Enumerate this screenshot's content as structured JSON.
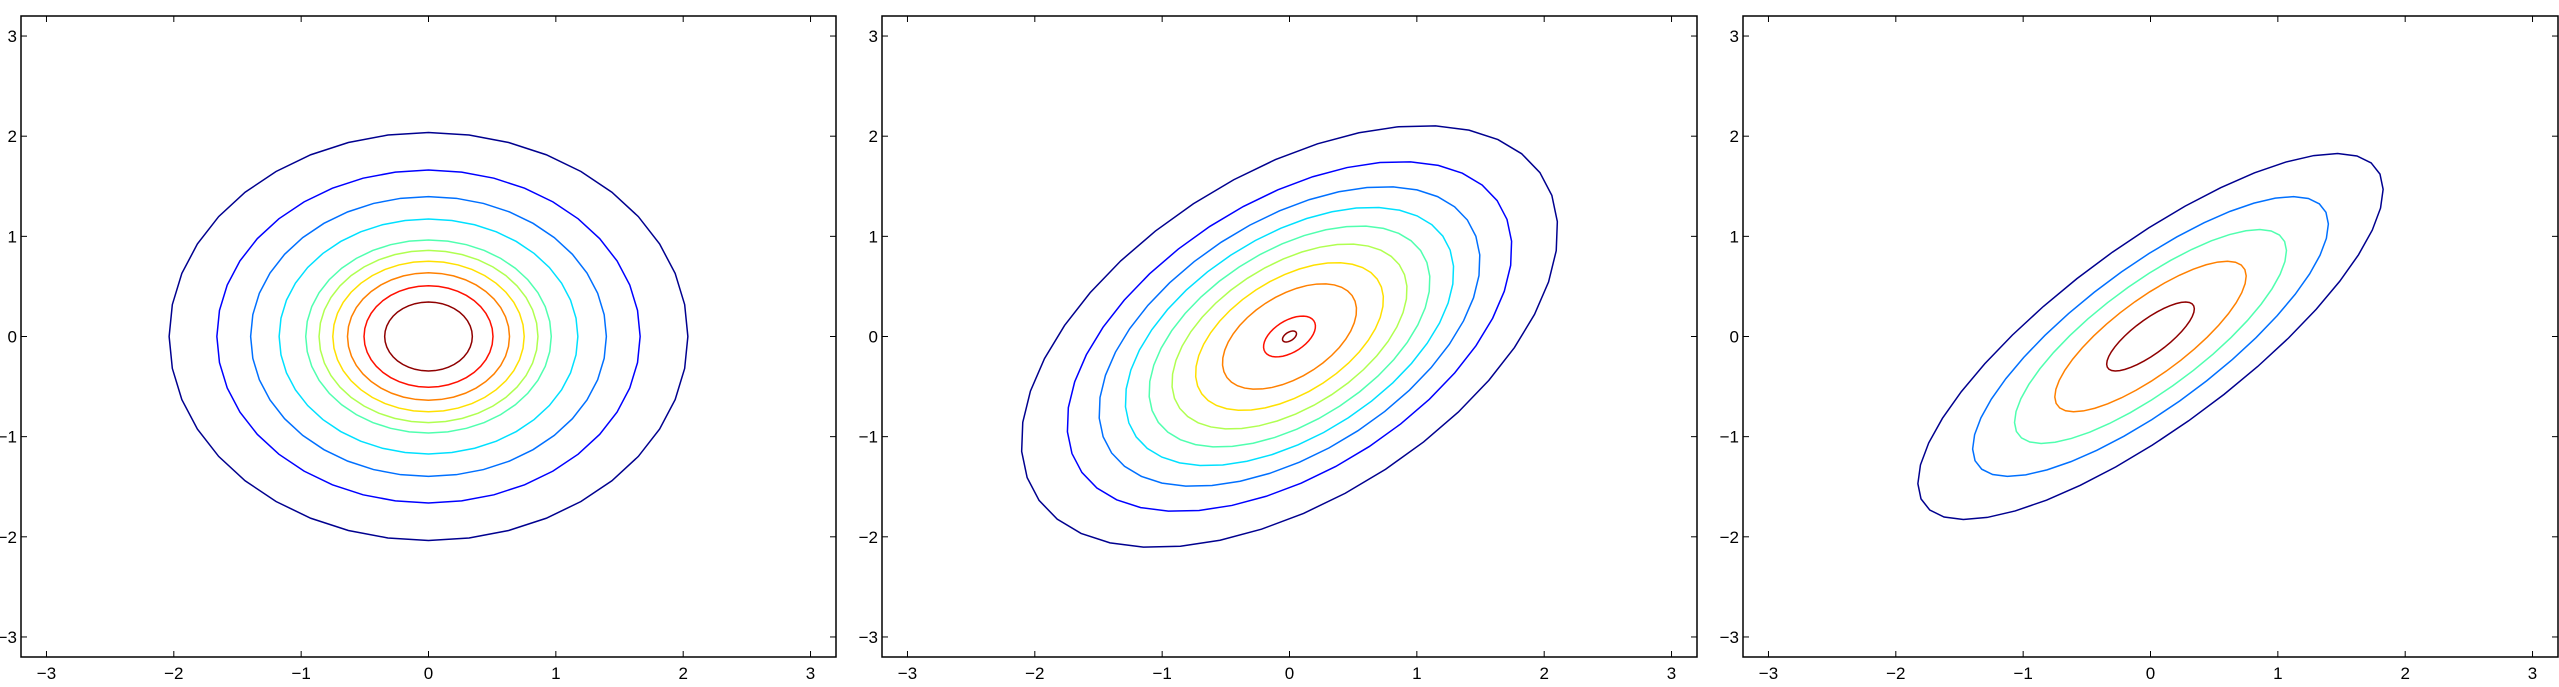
{
  "chart_data": [
    {
      "type": "contour",
      "xlim": [
        -3.2,
        3.2
      ],
      "ylim": [
        -3.2,
        3.2
      ],
      "xticks": [
        -3,
        -2,
        -1,
        0,
        1,
        2,
        3
      ],
      "yticks": [
        -3,
        -2,
        -1,
        0,
        1,
        2,
        3
      ],
      "xtick_labels": [
        "−3",
        "−2",
        "−1",
        "0",
        "1",
        "2",
        "3"
      ],
      "ytick_labels": [
        "−3",
        "−2",
        "−1",
        "0",
        "1",
        "2",
        "3"
      ],
      "grid": false,
      "distribution": {
        "mean": [
          0,
          0
        ],
        "covariance": [
          [
            1,
            0
          ],
          [
            0,
            1
          ]
        ]
      },
      "contours": [
        {
          "level": 0.02,
          "color": "#00008f"
        },
        {
          "level": 0.04,
          "color": "#0000ff"
        },
        {
          "level": 0.06,
          "color": "#0070ff"
        },
        {
          "level": 0.08,
          "color": "#00e0ff"
        },
        {
          "level": 0.1,
          "color": "#50ffaf"
        },
        {
          "level": 0.11,
          "color": "#b0ff50"
        },
        {
          "level": 0.12,
          "color": "#ffe000"
        },
        {
          "level": 0.13,
          "color": "#ff8000"
        },
        {
          "level": 0.14,
          "color": "#ff1000"
        },
        {
          "level": 0.15,
          "color": "#8f0000"
        }
      ]
    },
    {
      "type": "contour",
      "xlim": [
        -3.2,
        3.2
      ],
      "ylim": [
        -3.2,
        3.2
      ],
      "xticks": [
        -3,
        -2,
        -1,
        0,
        1,
        2,
        3
      ],
      "yticks": [
        -3,
        -2,
        -1,
        0,
        1,
        2,
        3
      ],
      "xtick_labels": [
        "−3",
        "−2",
        "−1",
        "0",
        "1",
        "2",
        "3"
      ],
      "ytick_labels": [
        "−3",
        "−2",
        "−1",
        "0",
        "1",
        "2",
        "3"
      ],
      "grid": false,
      "distribution": {
        "mean": [
          0,
          0
        ],
        "covariance": [
          [
            1,
            0.5
          ],
          [
            0.5,
            1
          ]
        ]
      },
      "contours": [
        {
          "level": 0.02,
          "color": "#00008f"
        },
        {
          "level": 0.04,
          "color": "#0000ff"
        },
        {
          "level": 0.06,
          "color": "#0070ff"
        },
        {
          "level": 0.08,
          "color": "#00e0ff"
        },
        {
          "level": 0.1,
          "color": "#50ffaf"
        },
        {
          "level": 0.12,
          "color": "#b0ff50"
        },
        {
          "level": 0.14,
          "color": "#ffe000"
        },
        {
          "level": 0.16,
          "color": "#ff8000"
        },
        {
          "level": 0.18,
          "color": "#ff1000"
        },
        {
          "level": 0.1835,
          "color": "#8f0000"
        }
      ]
    },
    {
      "type": "contour",
      "xlim": [
        -3.2,
        3.2
      ],
      "ylim": [
        -3.2,
        3.2
      ],
      "xticks": [
        -3,
        -2,
        -1,
        0,
        1,
        2,
        3
      ],
      "yticks": [
        -3,
        -2,
        -1,
        0,
        1,
        2,
        3
      ],
      "xtick_labels": [
        "−3",
        "−2",
        "−1",
        "0",
        "1",
        "2",
        "3"
      ],
      "ytick_labels": [
        "−3",
        "−2",
        "−1",
        "0",
        "1",
        "2",
        "3"
      ],
      "grid": false,
      "distribution": {
        "mean": [
          0,
          0
        ],
        "covariance": [
          [
            1,
            0.8
          ],
          [
            0.8,
            1
          ]
        ]
      },
      "contours": [
        {
          "level": 0.05,
          "color": "#00008f"
        },
        {
          "level": 0.1,
          "color": "#0070ff"
        },
        {
          "level": 0.15,
          "color": "#50ffaf"
        },
        {
          "level": 0.2,
          "color": "#ff8000"
        },
        {
          "level": 0.25,
          "color": "#8f0000"
        }
      ]
    }
  ]
}
